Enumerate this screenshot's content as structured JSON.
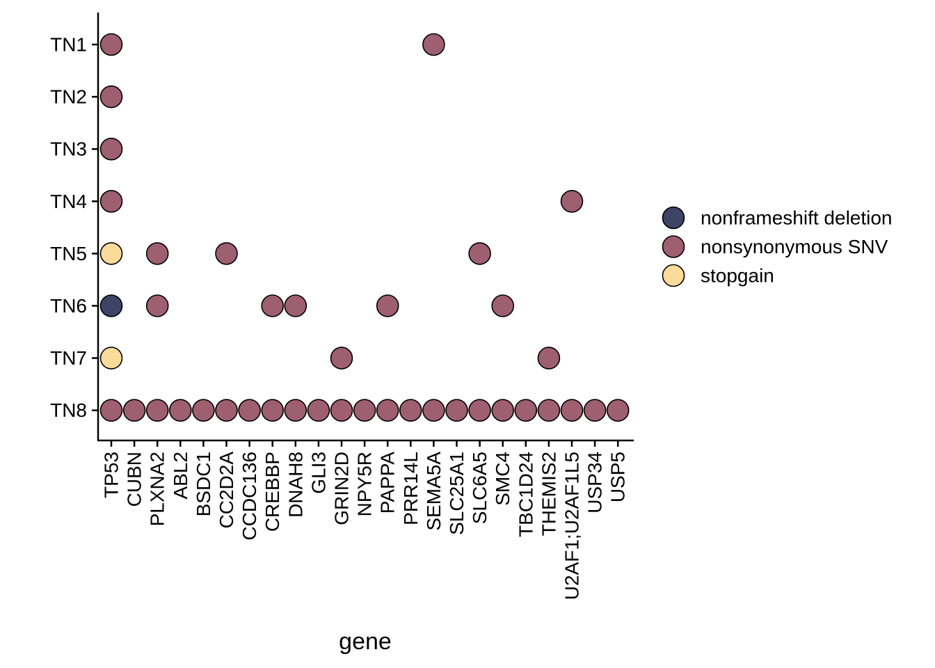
{
  "chart_data": {
    "type": "scatter",
    "xlabel": "gene",
    "ylabel": "",
    "x_categories": [
      "TP53",
      "CUBN",
      "PLXNA2",
      "ABL2",
      "BSDC1",
      "CC2D2A",
      "CCDC136",
      "CREBBP",
      "DNAH8",
      "GLI3",
      "GRIN2D",
      "NPY5R",
      "PAPPA",
      "PRR14L",
      "SEMA5A",
      "SLC25A1",
      "SLC6A5",
      "SMC4",
      "TBC1D24",
      "THEMIS2",
      "U2AF1;U2AF1L5",
      "USP34",
      "USP5"
    ],
    "y_categories": [
      "TN1",
      "TN2",
      "TN3",
      "TN4",
      "TN5",
      "TN6",
      "TN7",
      "TN8"
    ],
    "legend": {
      "position": "right",
      "entries": [
        {
          "key": "nonframeshift deletion",
          "label": "nonframeshift deletion",
          "color": "#3d4466"
        },
        {
          "key": "nonsynonymous SNV",
          "label": "nonsynonymous SNV",
          "color": "#9e5f70"
        },
        {
          "key": "stopgain",
          "label": "stopgain",
          "color": "#fadb9a"
        }
      ]
    },
    "points": [
      {
        "x": "TP53",
        "y": "TN1",
        "type": "nonsynonymous SNV"
      },
      {
        "x": "SEMA5A",
        "y": "TN1",
        "type": "nonsynonymous SNV"
      },
      {
        "x": "TP53",
        "y": "TN2",
        "type": "nonsynonymous SNV"
      },
      {
        "x": "TP53",
        "y": "TN3",
        "type": "nonsynonymous SNV"
      },
      {
        "x": "TP53",
        "y": "TN4",
        "type": "nonsynonymous SNV"
      },
      {
        "x": "U2AF1;U2AF1L5",
        "y": "TN4",
        "type": "nonsynonymous SNV"
      },
      {
        "x": "TP53",
        "y": "TN5",
        "type": "stopgain"
      },
      {
        "x": "PLXNA2",
        "y": "TN5",
        "type": "nonsynonymous SNV"
      },
      {
        "x": "CC2D2A",
        "y": "TN5",
        "type": "nonsynonymous SNV"
      },
      {
        "x": "SLC6A5",
        "y": "TN5",
        "type": "nonsynonymous SNV"
      },
      {
        "x": "TP53",
        "y": "TN6",
        "type": "nonframeshift deletion"
      },
      {
        "x": "PLXNA2",
        "y": "TN6",
        "type": "nonsynonymous SNV"
      },
      {
        "x": "CREBBP",
        "y": "TN6",
        "type": "nonsynonymous SNV"
      },
      {
        "x": "DNAH8",
        "y": "TN6",
        "type": "nonsynonymous SNV"
      },
      {
        "x": "PAPPA",
        "y": "TN6",
        "type": "nonsynonymous SNV"
      },
      {
        "x": "SMC4",
        "y": "TN6",
        "type": "nonsynonymous SNV"
      },
      {
        "x": "TP53",
        "y": "TN7",
        "type": "stopgain"
      },
      {
        "x": "GRIN2D",
        "y": "TN7",
        "type": "nonsynonymous SNV"
      },
      {
        "x": "THEMIS2",
        "y": "TN7",
        "type": "nonsynonymous SNV"
      },
      {
        "x": "TP53",
        "y": "TN8",
        "type": "nonsynonymous SNV"
      },
      {
        "x": "CUBN",
        "y": "TN8",
        "type": "nonsynonymous SNV"
      },
      {
        "x": "PLXNA2",
        "y": "TN8",
        "type": "nonsynonymous SNV"
      },
      {
        "x": "ABL2",
        "y": "TN8",
        "type": "nonsynonymous SNV"
      },
      {
        "x": "BSDC1",
        "y": "TN8",
        "type": "nonsynonymous SNV"
      },
      {
        "x": "CC2D2A",
        "y": "TN8",
        "type": "nonsynonymous SNV"
      },
      {
        "x": "CCDC136",
        "y": "TN8",
        "type": "nonsynonymous SNV"
      },
      {
        "x": "CREBBP",
        "y": "TN8",
        "type": "nonsynonymous SNV"
      },
      {
        "x": "DNAH8",
        "y": "TN8",
        "type": "nonsynonymous SNV"
      },
      {
        "x": "GLI3",
        "y": "TN8",
        "type": "nonsynonymous SNV"
      },
      {
        "x": "GRIN2D",
        "y": "TN8",
        "type": "nonsynonymous SNV"
      },
      {
        "x": "NPY5R",
        "y": "TN8",
        "type": "nonsynonymous SNV"
      },
      {
        "x": "PAPPA",
        "y": "TN8",
        "type": "nonsynonymous SNV"
      },
      {
        "x": "PRR14L",
        "y": "TN8",
        "type": "nonsynonymous SNV"
      },
      {
        "x": "SEMA5A",
        "y": "TN8",
        "type": "nonsynonymous SNV"
      },
      {
        "x": "SLC25A1",
        "y": "TN8",
        "type": "nonsynonymous SNV"
      },
      {
        "x": "SLC6A5",
        "y": "TN8",
        "type": "nonsynonymous SNV"
      },
      {
        "x": "SMC4",
        "y": "TN8",
        "type": "nonsynonymous SNV"
      },
      {
        "x": "TBC1D24",
        "y": "TN8",
        "type": "nonsynonymous SNV"
      },
      {
        "x": "THEMIS2",
        "y": "TN8",
        "type": "nonsynonymous SNV"
      },
      {
        "x": "U2AF1;U2AF1L5",
        "y": "TN8",
        "type": "nonsynonymous SNV"
      },
      {
        "x": "USP34",
        "y": "TN8",
        "type": "nonsynonymous SNV"
      },
      {
        "x": "USP5",
        "y": "TN8",
        "type": "nonsynonymous SNV"
      }
    ]
  }
}
